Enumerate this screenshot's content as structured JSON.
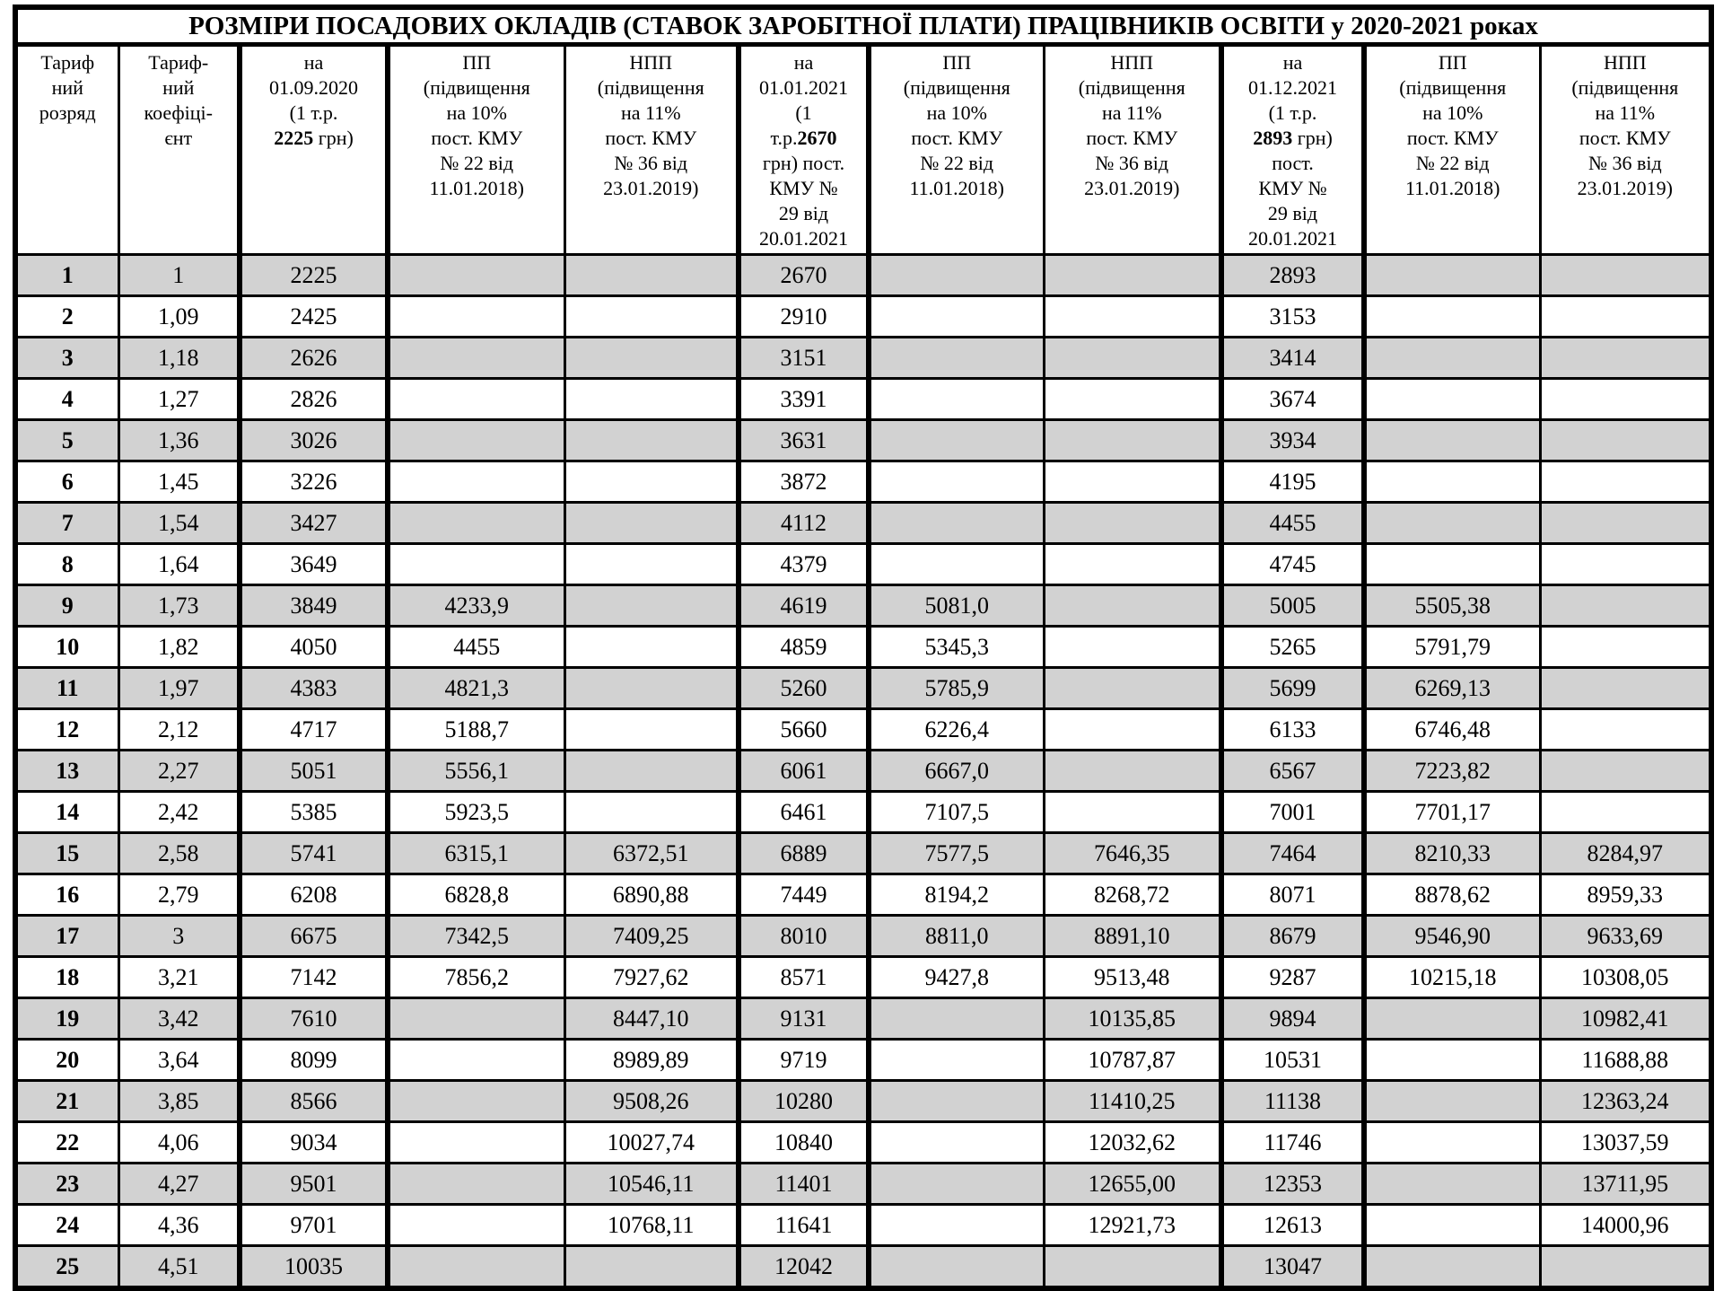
{
  "title": "РОЗМІРИ ПОСАДОВИХ ОКЛАДІВ (СТАВОК ЗАРОБІТНОЇ ПЛАТИ) ПРАЦІВНИКІВ ОСВІТИ  у 2020-2021 роках",
  "header": {
    "rank": "Тариф\nний\nрозряд",
    "coef": "Тариф-\nний\nкоефіці-\nєнт",
    "sep2020": {
      "pre": "на\n01.09.2020\n(1 т.р.\n",
      "bold": "2225",
      "post": " грн)"
    },
    "pp2018": "ПП\n(підвищення\nна 10%\nпост. КМУ\n№ 22 від\n11.01.2018)",
    "npp2019": "НПП\n(підвищення\nна 11%\nпост. КМУ\n№ 36 від\n23.01.2019)",
    "jan2021": {
      "pre": "на\n01.01.2021\n(1\nт.р.",
      "bold": "2670",
      "post": "\nгрн) пост.\nКМУ №\n29 від\n20.01.2021"
    },
    "dec2021": {
      "pre": "на\n01.12.2021\n(1 т.р.\n",
      "bold": "2893",
      "post": " грн)\nпост.\nКМУ №\n29 від\n20.01.2021"
    }
  },
  "shaded_row_color": "#d2d2d2",
  "rows": [
    {
      "rank": "1",
      "coef": "1",
      "sep2020": "2225",
      "pp2020": "",
      "npp2020": "",
      "jan2021": "2670",
      "pp_jan": "",
      "npp_jan": "",
      "dec2021": "2893",
      "pp_dec": "",
      "npp_dec": ""
    },
    {
      "rank": "2",
      "coef": "1,09",
      "sep2020": "2425",
      "pp2020": "",
      "npp2020": "",
      "jan2021": "2910",
      "pp_jan": "",
      "npp_jan": "",
      "dec2021": "3153",
      "pp_dec": "",
      "npp_dec": ""
    },
    {
      "rank": "3",
      "coef": "1,18",
      "sep2020": "2626",
      "pp2020": "",
      "npp2020": "",
      "jan2021": "3151",
      "pp_jan": "",
      "npp_jan": "",
      "dec2021": "3414",
      "pp_dec": "",
      "npp_dec": ""
    },
    {
      "rank": "4",
      "coef": "1,27",
      "sep2020": "2826",
      "pp2020": "",
      "npp2020": "",
      "jan2021": "3391",
      "pp_jan": "",
      "npp_jan": "",
      "dec2021": "3674",
      "pp_dec": "",
      "npp_dec": ""
    },
    {
      "rank": "5",
      "coef": "1,36",
      "sep2020": "3026",
      "pp2020": "",
      "npp2020": "",
      "jan2021": "3631",
      "pp_jan": "",
      "npp_jan": "",
      "dec2021": "3934",
      "pp_dec": "",
      "npp_dec": ""
    },
    {
      "rank": "6",
      "coef": "1,45",
      "sep2020": "3226",
      "pp2020": "",
      "npp2020": "",
      "jan2021": "3872",
      "pp_jan": "",
      "npp_jan": "",
      "dec2021": "4195",
      "pp_dec": "",
      "npp_dec": ""
    },
    {
      "rank": "7",
      "coef": "1,54",
      "sep2020": "3427",
      "pp2020": "",
      "npp2020": "",
      "jan2021": "4112",
      "pp_jan": "",
      "npp_jan": "",
      "dec2021": "4455",
      "pp_dec": "",
      "npp_dec": ""
    },
    {
      "rank": "8",
      "coef": "1,64",
      "sep2020": "3649",
      "pp2020": "",
      "npp2020": "",
      "jan2021": "4379",
      "pp_jan": "",
      "npp_jan": "",
      "dec2021": "4745",
      "pp_dec": "",
      "npp_dec": ""
    },
    {
      "rank": "9",
      "coef": "1,73",
      "sep2020": "3849",
      "pp2020": "4233,9",
      "npp2020": "",
      "jan2021": "4619",
      "pp_jan": "5081,0",
      "npp_jan": "",
      "dec2021": "5005",
      "pp_dec": "5505,38",
      "npp_dec": ""
    },
    {
      "rank": "10",
      "coef": "1,82",
      "sep2020": "4050",
      "pp2020": "4455",
      "npp2020": "",
      "jan2021": "4859",
      "pp_jan": "5345,3",
      "npp_jan": "",
      "dec2021": "5265",
      "pp_dec": "5791,79",
      "npp_dec": ""
    },
    {
      "rank": "11",
      "coef": "1,97",
      "sep2020": "4383",
      "pp2020": "4821,3",
      "npp2020": "",
      "jan2021": "5260",
      "pp_jan": "5785,9",
      "npp_jan": "",
      "dec2021": "5699",
      "pp_dec": "6269,13",
      "npp_dec": ""
    },
    {
      "rank": "12",
      "coef": "2,12",
      "sep2020": "4717",
      "pp2020": "5188,7",
      "npp2020": "",
      "jan2021": "5660",
      "pp_jan": "6226,4",
      "npp_jan": "",
      "dec2021": "6133",
      "pp_dec": "6746,48",
      "npp_dec": ""
    },
    {
      "rank": "13",
      "coef": "2,27",
      "sep2020": "5051",
      "pp2020": "5556,1",
      "npp2020": "",
      "jan2021": "6061",
      "pp_jan": "6667,0",
      "npp_jan": "",
      "dec2021": "6567",
      "pp_dec": "7223,82",
      "npp_dec": ""
    },
    {
      "rank": "14",
      "coef": "2,42",
      "sep2020": "5385",
      "pp2020": "5923,5",
      "npp2020": "",
      "jan2021": "6461",
      "pp_jan": "7107,5",
      "npp_jan": "",
      "dec2021": "7001",
      "pp_dec": "7701,17",
      "npp_dec": ""
    },
    {
      "rank": "15",
      "coef": "2,58",
      "sep2020": "5741",
      "pp2020": "6315,1",
      "npp2020": "6372,51",
      "jan2021": "6889",
      "pp_jan": "7577,5",
      "npp_jan": "7646,35",
      "dec2021": "7464",
      "pp_dec": "8210,33",
      "npp_dec": "8284,97"
    },
    {
      "rank": "16",
      "coef": "2,79",
      "sep2020": "6208",
      "pp2020": "6828,8",
      "npp2020": "6890,88",
      "jan2021": "7449",
      "pp_jan": "8194,2",
      "npp_jan": "8268,72",
      "dec2021": "8071",
      "pp_dec": "8878,62",
      "npp_dec": "8959,33"
    },
    {
      "rank": "17",
      "coef": "3",
      "sep2020": "6675",
      "pp2020": "7342,5",
      "npp2020": "7409,25",
      "jan2021": "8010",
      "pp_jan": "8811,0",
      "npp_jan": "8891,10",
      "dec2021": "8679",
      "pp_dec": "9546,90",
      "npp_dec": "9633,69"
    },
    {
      "rank": "18",
      "coef": "3,21",
      "sep2020": "7142",
      "pp2020": "7856,2",
      "npp2020": "7927,62",
      "jan2021": "8571",
      "pp_jan": "9427,8",
      "npp_jan": "9513,48",
      "dec2021": "9287",
      "pp_dec": "10215,18",
      "npp_dec": "10308,05"
    },
    {
      "rank": "19",
      "coef": "3,42",
      "sep2020": "7610",
      "pp2020": "",
      "npp2020": "8447,10",
      "jan2021": "9131",
      "pp_jan": "",
      "npp_jan": "10135,85",
      "dec2021": "9894",
      "pp_dec": "",
      "npp_dec": "10982,41"
    },
    {
      "rank": "20",
      "coef": "3,64",
      "sep2020": "8099",
      "pp2020": "",
      "npp2020": "8989,89",
      "jan2021": "9719",
      "pp_jan": "",
      "npp_jan": "10787,87",
      "dec2021": "10531",
      "pp_dec": "",
      "npp_dec": "11688,88"
    },
    {
      "rank": "21",
      "coef": "3,85",
      "sep2020": "8566",
      "pp2020": "",
      "npp2020": "9508,26",
      "jan2021": "10280",
      "pp_jan": "",
      "npp_jan": "11410,25",
      "dec2021": "11138",
      "pp_dec": "",
      "npp_dec": "12363,24"
    },
    {
      "rank": "22",
      "coef": "4,06",
      "sep2020": "9034",
      "pp2020": "",
      "npp2020": "10027,74",
      "jan2021": "10840",
      "pp_jan": "",
      "npp_jan": "12032,62",
      "dec2021": "11746",
      "pp_dec": "",
      "npp_dec": "13037,59"
    },
    {
      "rank": "23",
      "coef": "4,27",
      "sep2020": "9501",
      "pp2020": "",
      "npp2020": "10546,11",
      "jan2021": "11401",
      "pp_jan": "",
      "npp_jan": "12655,00",
      "dec2021": "12353",
      "pp_dec": "",
      "npp_dec": "13711,95"
    },
    {
      "rank": "24",
      "coef": "4,36",
      "sep2020": "9701",
      "pp2020": "",
      "npp2020": "10768,11",
      "jan2021": "11641",
      "pp_jan": "",
      "npp_jan": "12921,73",
      "dec2021": "12613",
      "pp_dec": "",
      "npp_dec": "14000,96"
    },
    {
      "rank": "25",
      "coef": "4,51",
      "sep2020": "10035",
      "pp2020": "",
      "npp2020": "",
      "jan2021": "12042",
      "pp_jan": "",
      "npp_jan": "",
      "dec2021": "13047",
      "pp_dec": "",
      "npp_dec": ""
    }
  ]
}
